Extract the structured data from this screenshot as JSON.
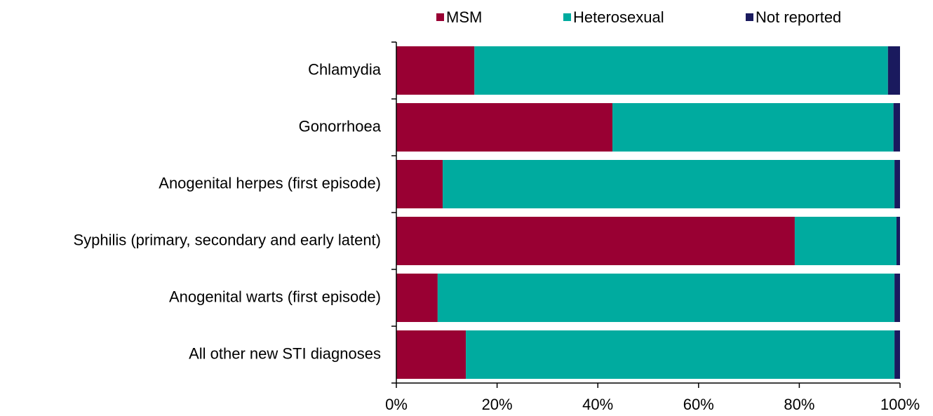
{
  "chart_data": {
    "type": "stacked-barh",
    "categories": [
      "Chlamydia",
      "Gonorrhoea",
      "Anogenital herpes (first episode)",
      "Syphilis (primary, secondary and early latent)",
      "Anogenital warts (first episode)",
      "All other new STI diagnoses"
    ],
    "series": [
      {
        "name": "MSM",
        "color": "#990033",
        "values": [
          15.5,
          42.9,
          9.2,
          79.1,
          8.2,
          13.8
        ]
      },
      {
        "name": "Heterosexual",
        "color": "#00ab9f",
        "values": [
          82.1,
          55.8,
          89.7,
          20.2,
          90.7,
          85.1
        ]
      },
      {
        "name": "Not reported",
        "color": "#1a1a5e",
        "values": [
          2.4,
          1.3,
          1.1,
          0.7,
          1.1,
          1.1
        ]
      }
    ],
    "xlim": [
      0,
      100
    ],
    "xticks": [
      {
        "value": 0,
        "label": "0%"
      },
      {
        "value": 20,
        "label": "20%"
      },
      {
        "value": 40,
        "label": "40%"
      },
      {
        "value": 60,
        "label": "60%"
      },
      {
        "value": 80,
        "label": "80%"
      },
      {
        "value": 100,
        "label": "100%"
      }
    ],
    "legend": "top"
  }
}
